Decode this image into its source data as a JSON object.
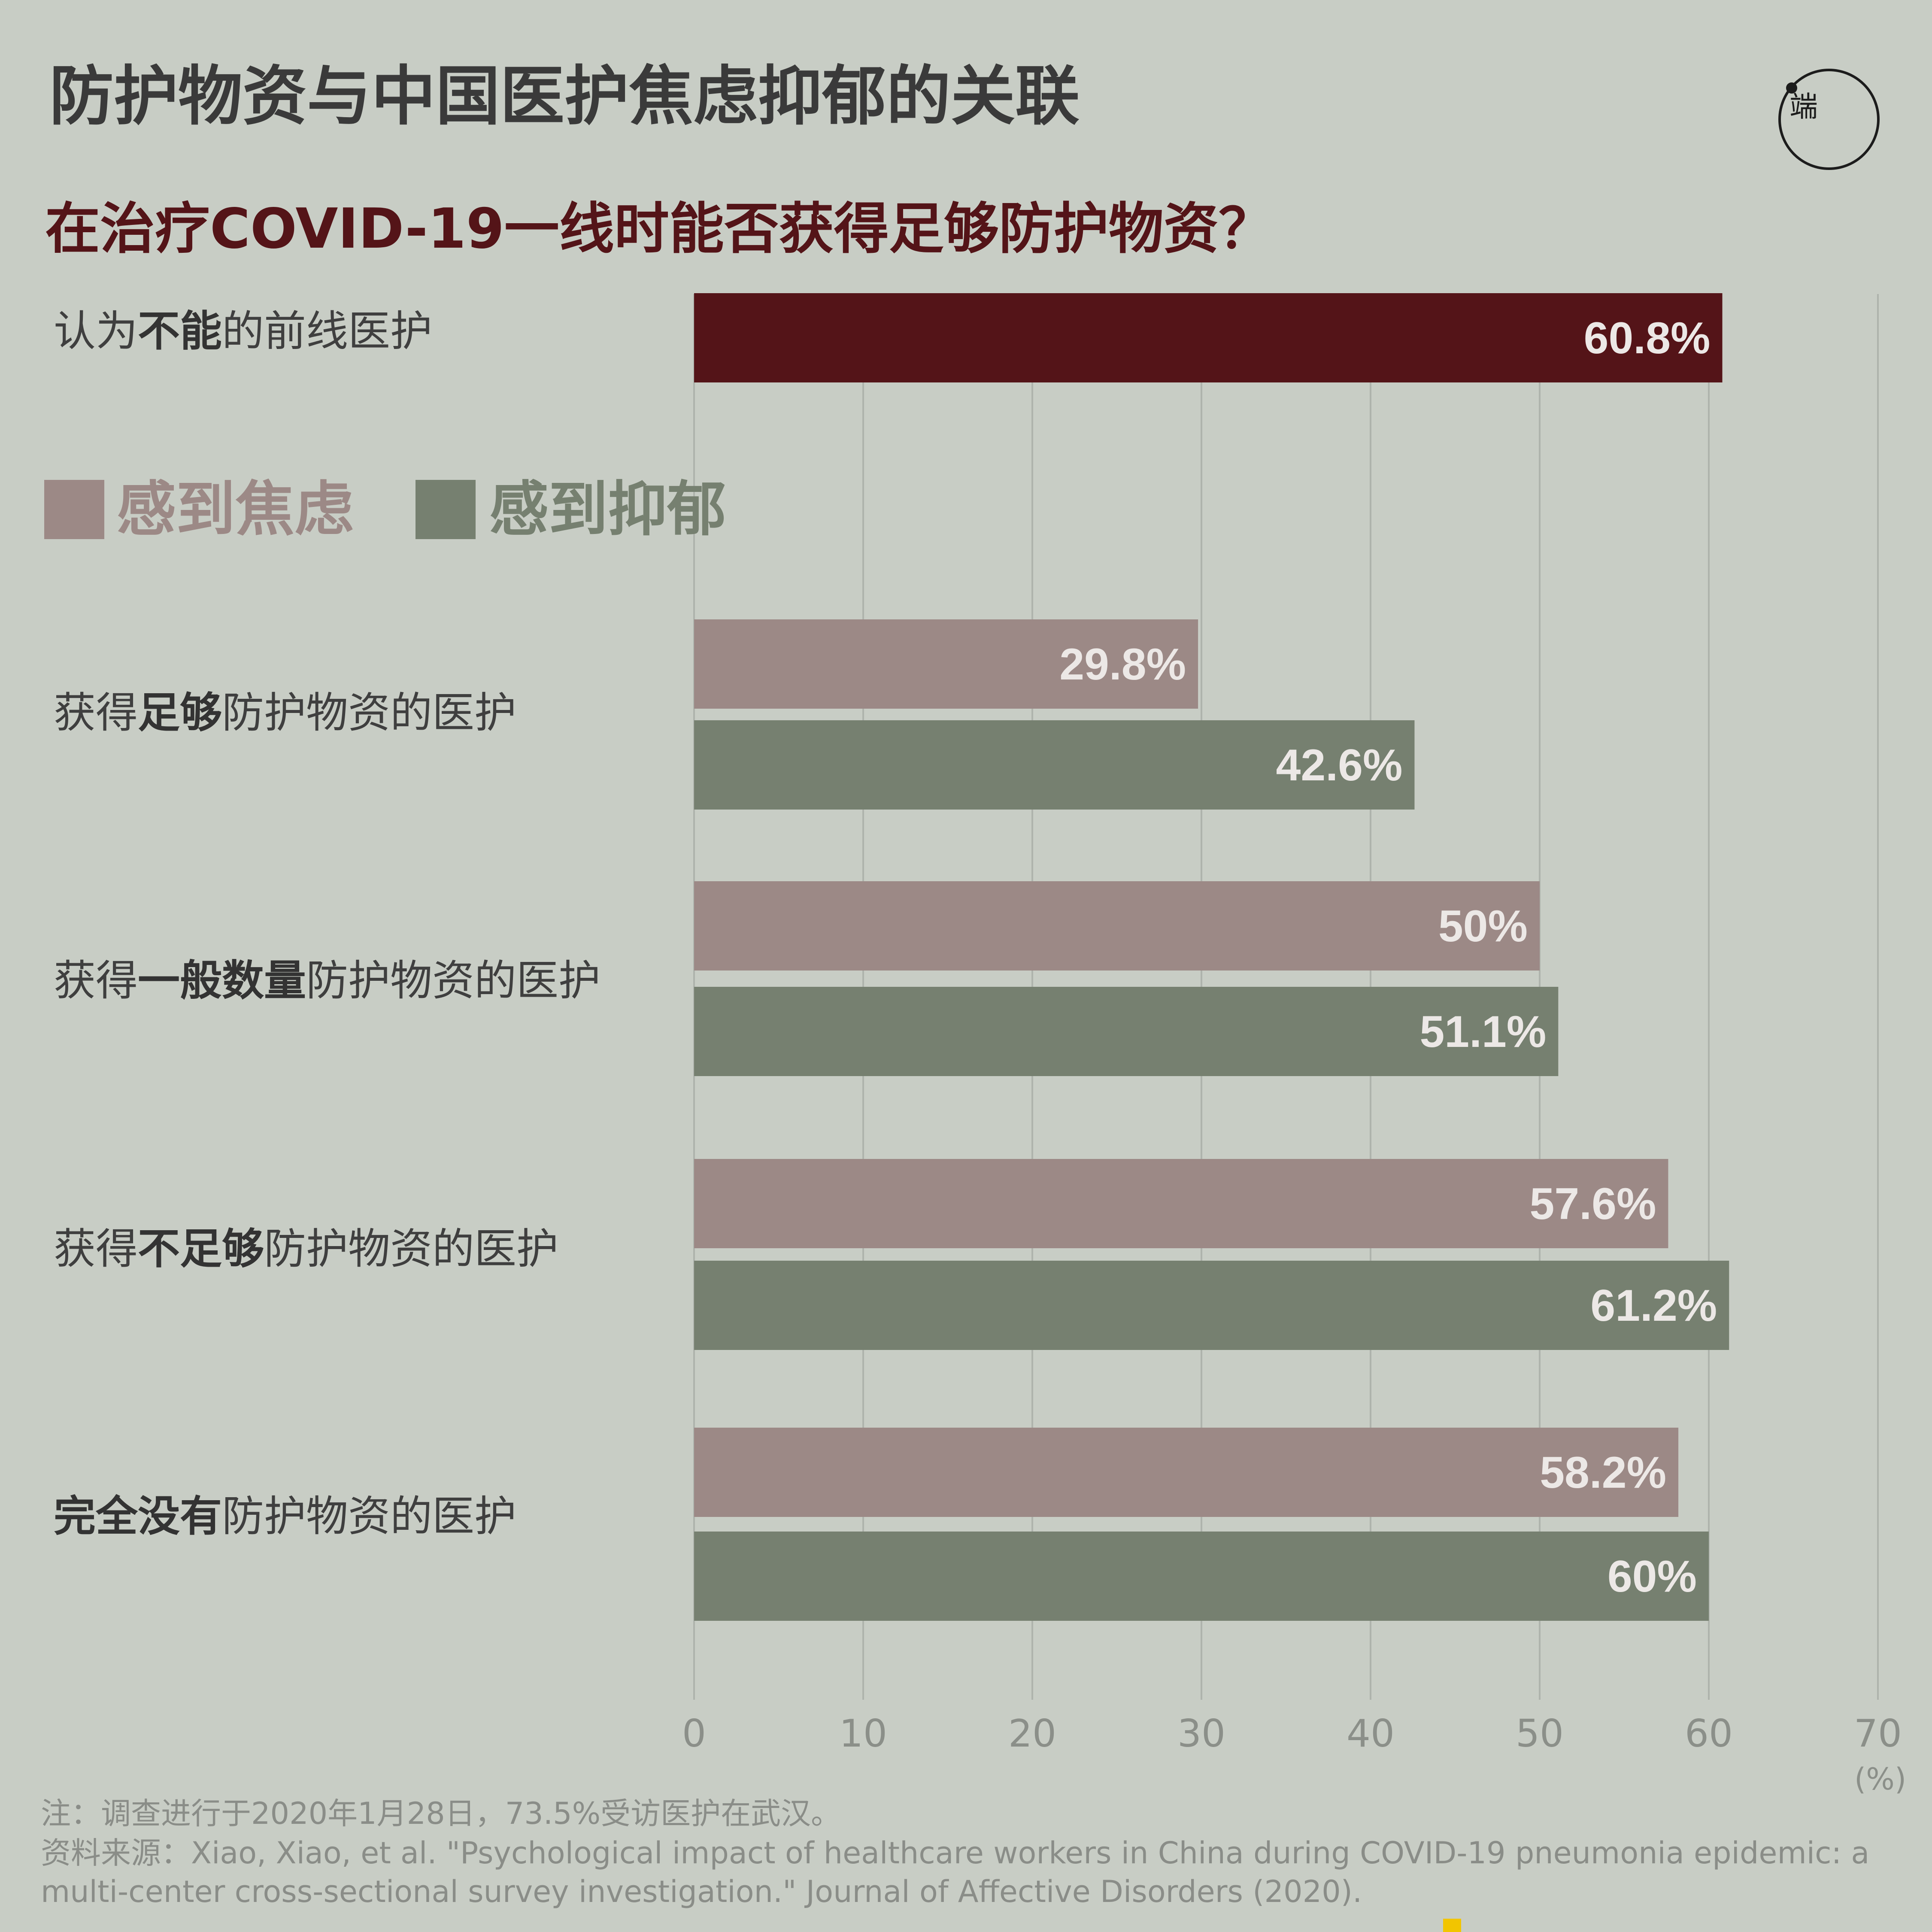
{
  "title": "防护物资与中国医护焦虑抑郁的关联",
  "subtitle": "在治疗COVID-19一线时能否获得足够防护物资？",
  "logo": {
    "text": "端"
  },
  "legend": [
    {
      "label": "感到焦虑",
      "color": "#9c8986"
    },
    {
      "label": "感到抑郁",
      "color": "#768070"
    }
  ],
  "categories": [
    {
      "parts": [
        {
          "text": "认为",
          "bold": false
        },
        {
          "text": "不能",
          "bold": true
        },
        {
          "text": "的前线医护",
          "bold": false
        }
      ]
    },
    {
      "parts": [
        {
          "text": "获得",
          "bold": false
        },
        {
          "text": "足够",
          "bold": true
        },
        {
          "text": "防护物资的医护",
          "bold": false
        }
      ]
    },
    {
      "parts": [
        {
          "text": "获得",
          "bold": false
        },
        {
          "text": "一般数量",
          "bold": true
        },
        {
          "text": "防护物资的医护",
          "bold": false
        }
      ]
    },
    {
      "parts": [
        {
          "text": "获得",
          "bold": false
        },
        {
          "text": "不足够",
          "bold": true
        },
        {
          "text": "防护物资的医护",
          "bold": false
        }
      ]
    },
    {
      "parts": [
        {
          "text": "完全没有",
          "bold": true
        },
        {
          "text": "防护物资的医护",
          "bold": false
        }
      ]
    }
  ],
  "axis": {
    "unit": "(%)"
  },
  "notes": {
    "note": "注：调查进行于2020年1月28日，73.5%受访医护在武汉。",
    "source1": "资料来源：Xiao, Xiao, et al. \"Psychological impact of healthcare workers in China during COVID-19 pneumonia epidemic: a",
    "source2": "multi-center cross-sectional survey investigation.\" Journal of Affective Disorders (2020)."
  },
  "chart_data": {
    "type": "bar",
    "orientation": "horizontal",
    "xlim": [
      0,
      70
    ],
    "xticks": [
      0,
      10,
      20,
      30,
      40,
      50,
      60,
      70
    ],
    "grid": true,
    "colors": {
      "highlight": "#541418",
      "anxiety": "#9c8986",
      "depression": "#768070"
    },
    "bars": [
      {
        "category": "认为不能的前线医护",
        "value": 60.8,
        "label": "60.8%",
        "color_key": "highlight"
      },
      {
        "category": "获得足够防护物资的医护",
        "series": "感到焦虑",
        "value": 29.8,
        "label": "29.8%",
        "color_key": "anxiety"
      },
      {
        "category": "获得足够防护物资的医护",
        "series": "感到抑郁",
        "value": 42.6,
        "label": "42.6%",
        "color_key": "depression"
      },
      {
        "category": "获得一般数量防护物资的医护",
        "series": "感到焦虑",
        "value": 50,
        "label": "50%",
        "color_key": "anxiety"
      },
      {
        "category": "获得一般数量防护物资的医护",
        "series": "感到抑郁",
        "value": 51.1,
        "label": "51.1%",
        "color_key": "depression"
      },
      {
        "category": "获得不足够防护物资的医护",
        "series": "感到焦虑",
        "value": 57.6,
        "label": "57.6%",
        "color_key": "anxiety"
      },
      {
        "category": "获得不足够防护物资的医护",
        "series": "感到抑郁",
        "value": 61.2,
        "label": "61.2%",
        "color_key": "depression"
      },
      {
        "category": "完全没有防护物资的医护",
        "series": "感到焦虑",
        "value": 58.2,
        "label": "58.2%",
        "color_key": "anxiety"
      },
      {
        "category": "完全没有防护物资的医护",
        "series": "感到抑郁",
        "value": 60,
        "label": "60%",
        "color_key": "depression"
      }
    ]
  }
}
